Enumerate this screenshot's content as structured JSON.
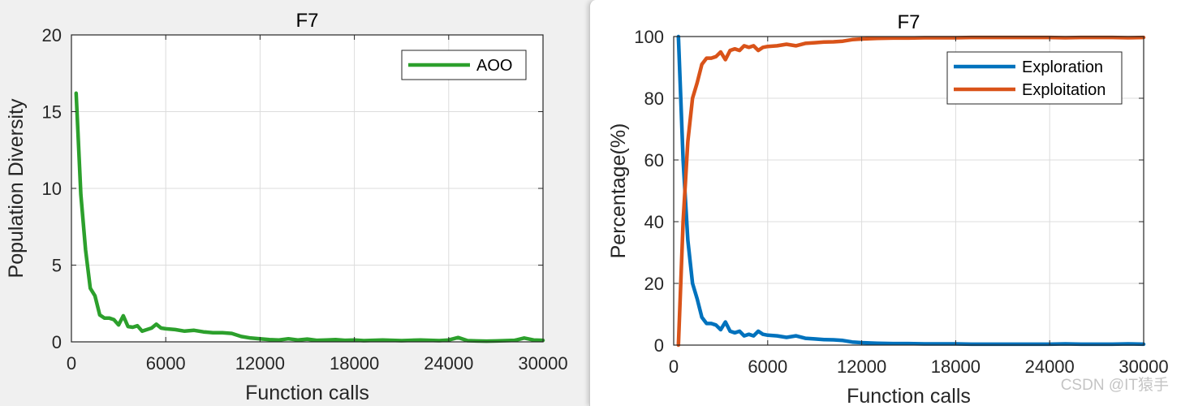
{
  "chart_data": [
    {
      "type": "line",
      "title": "F7",
      "xlabel": "Function calls",
      "ylabel": "Population Diversity",
      "xlim": [
        0,
        30000
      ],
      "ylim": [
        0,
        20
      ],
      "xticks": [
        "0",
        "6000",
        "12000",
        "18000",
        "24000",
        "30000"
      ],
      "yticks": [
        "0",
        "5",
        "10",
        "15",
        "20"
      ],
      "grid": true,
      "legend_position": "top-right",
      "series": [
        {
          "name": "AOO",
          "color": "#2ca02c",
          "x": [
            300,
            600,
            900,
            1200,
            1500,
            1800,
            2100,
            2400,
            2700,
            3000,
            3300,
            3600,
            3900,
            4200,
            4500,
            4800,
            5100,
            5400,
            5700,
            6000,
            6600,
            7200,
            7800,
            8400,
            9000,
            9600,
            10200,
            10800,
            11400,
            12000,
            12600,
            13200,
            13800,
            14400,
            15000,
            15600,
            16200,
            16800,
            17400,
            18000,
            18600,
            19200,
            19800,
            20400,
            21000,
            21600,
            22200,
            22800,
            23400,
            24000,
            24600,
            25200,
            25800,
            26400,
            27000,
            27600,
            28200,
            28800,
            29400,
            30000
          ],
          "y": [
            16.2,
            9.6,
            6.0,
            3.5,
            3.0,
            1.75,
            1.55,
            1.55,
            1.45,
            1.1,
            1.7,
            1.0,
            0.95,
            1.05,
            0.7,
            0.8,
            0.9,
            1.15,
            0.9,
            0.85,
            0.8,
            0.7,
            0.75,
            0.65,
            0.6,
            0.6,
            0.55,
            0.35,
            0.25,
            0.2,
            0.15,
            0.12,
            0.2,
            0.12,
            0.18,
            0.1,
            0.12,
            0.15,
            0.1,
            0.12,
            0.08,
            0.1,
            0.12,
            0.1,
            0.08,
            0.1,
            0.12,
            0.1,
            0.08,
            0.12,
            0.28,
            0.08,
            0.06,
            0.05,
            0.06,
            0.08,
            0.1,
            0.25,
            0.12,
            0.1
          ]
        }
      ]
    },
    {
      "type": "line",
      "title": "F7",
      "xlabel": "Function calls",
      "ylabel": "Percentage(%)",
      "xlim": [
        0,
        30000
      ],
      "ylim": [
        0,
        100
      ],
      "xticks": [
        "0",
        "6000",
        "12000",
        "18000",
        "24000",
        "30000"
      ],
      "yticks": [
        "0",
        "20",
        "40",
        "60",
        "80",
        "100"
      ],
      "grid": true,
      "legend_position": "top-right",
      "series": [
        {
          "name": "Exploration",
          "color": "#0072bd",
          "x": [
            300,
            600,
            900,
            1200,
            1500,
            1800,
            2100,
            2400,
            2700,
            3000,
            3300,
            3600,
            3900,
            4200,
            4500,
            4800,
            5100,
            5400,
            5700,
            6000,
            6600,
            7200,
            7800,
            8400,
            9000,
            9600,
            10200,
            10800,
            11400,
            12000,
            13000,
            14000,
            15000,
            16000,
            17000,
            18000,
            19000,
            20000,
            21000,
            22000,
            23000,
            24000,
            25000,
            26000,
            27000,
            28000,
            29000,
            30000
          ],
          "y": [
            100,
            60,
            34,
            20,
            15,
            9,
            7,
            7,
            6.5,
            5,
            7.5,
            4.5,
            4,
            4.5,
            3,
            3.5,
            3,
            4.5,
            3.5,
            3.2,
            3,
            2.5,
            3,
            2.2,
            2,
            1.8,
            1.7,
            1.5,
            1,
            0.8,
            0.6,
            0.5,
            0.5,
            0.4,
            0.4,
            0.4,
            0.3,
            0.3,
            0.3,
            0.3,
            0.3,
            0.3,
            0.4,
            0.3,
            0.3,
            0.3,
            0.4,
            0.3
          ]
        },
        {
          "name": "Exploitation",
          "color": "#d95319",
          "x": [
            300,
            600,
            900,
            1200,
            1500,
            1800,
            2100,
            2400,
            2700,
            3000,
            3300,
            3600,
            3900,
            4200,
            4500,
            4800,
            5100,
            5400,
            5700,
            6000,
            6600,
            7200,
            7800,
            8400,
            9000,
            9600,
            10200,
            10800,
            11400,
            12000,
            13000,
            14000,
            15000,
            16000,
            17000,
            18000,
            19000,
            20000,
            21000,
            22000,
            23000,
            24000,
            25000,
            26000,
            27000,
            28000,
            29000,
            30000
          ],
          "y": [
            0,
            40,
            66,
            80,
            85,
            91,
            93,
            93,
            93.5,
            95,
            92.5,
            95.5,
            96,
            95.5,
            97,
            96.5,
            97,
            95.5,
            96.5,
            96.8,
            97,
            97.5,
            97,
            97.8,
            98,
            98.2,
            98.3,
            98.5,
            99,
            99.2,
            99.4,
            99.5,
            99.5,
            99.6,
            99.6,
            99.6,
            99.7,
            99.7,
            99.7,
            99.7,
            99.7,
            99.7,
            99.6,
            99.7,
            99.7,
            99.7,
            99.6,
            99.7
          ]
        }
      ]
    }
  ],
  "watermark": "CSDN @IT猿手"
}
